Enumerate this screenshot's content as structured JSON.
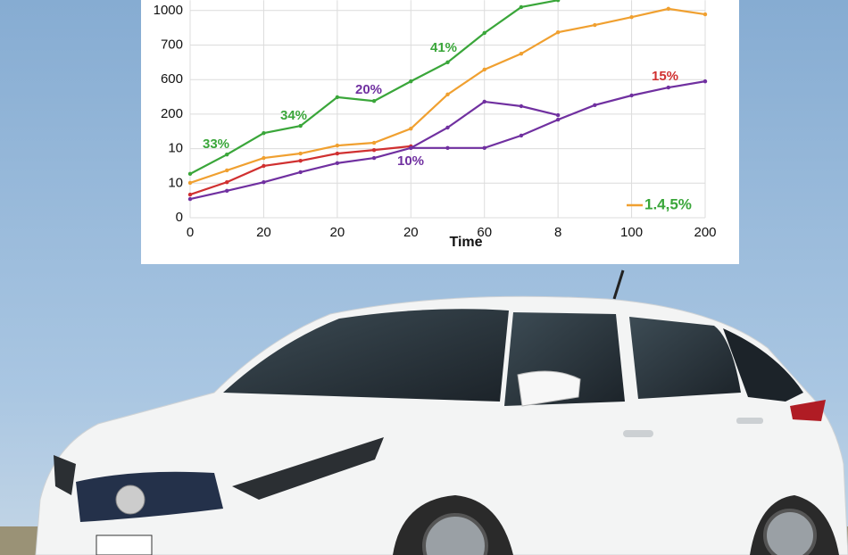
{
  "chart_data": {
    "type": "line",
    "xlabel": "Time",
    "xlim": [
      0,
      7
    ],
    "xticks": [
      {
        "value": 0,
        "label": "0"
      },
      {
        "value": 1,
        "label": "20"
      },
      {
        "value": 2,
        "label": "20"
      },
      {
        "value": 3,
        "label": "20"
      },
      {
        "value": 4,
        "label": "60"
      },
      {
        "value": 5,
        "label": "8"
      },
      {
        "value": 6,
        "label": "100"
      },
      {
        "value": 7,
        "label": "200"
      }
    ],
    "ylim": [
      0,
      6.3
    ],
    "yticks": [
      {
        "value": 0,
        "label": "0"
      },
      {
        "value": 1,
        "label": "10"
      },
      {
        "value": 2,
        "label": "10"
      },
      {
        "value": 3,
        "label": "200"
      },
      {
        "value": 4,
        "label": "600"
      },
      {
        "value": 5,
        "label": "700"
      },
      {
        "value": 6,
        "label": "1000"
      }
    ],
    "grid": true,
    "x": [
      0,
      0.5,
      1,
      1.5,
      2,
      2.5,
      3,
      3.5,
      4,
      4.5,
      5,
      5.5,
      6,
      6.5,
      7
    ],
    "series": [
      {
        "color": "#3aa63a",
        "values": [
          1.27,
          1.83,
          2.45,
          2.66,
          3.49,
          3.38,
          3.95,
          4.5,
          5.35,
          6.1,
          6.3,
          null,
          null,
          null,
          null
        ]
      },
      {
        "color": "#f0a030",
        "values": [
          1.01,
          1.37,
          1.73,
          1.86,
          2.09,
          2.17,
          2.58,
          3.57,
          4.29,
          4.75,
          5.37,
          5.58,
          5.81,
          6.05,
          5.89
        ]
      },
      {
        "color": "#d03030",
        "values": [
          0.67,
          1.03,
          1.5,
          1.65,
          1.86,
          1.96,
          2.07,
          null,
          null,
          null,
          null,
          null,
          null,
          null,
          null
        ]
      },
      {
        "color": "#7030a0",
        "values": [
          0.54,
          0.78,
          1.03,
          1.32,
          1.58,
          1.73,
          2.02,
          2.02,
          2.02,
          2.38,
          2.84,
          3.26,
          3.54,
          3.77,
          3.95
        ]
      },
      {
        "color": "#7030a0",
        "values": [
          null,
          null,
          null,
          null,
          null,
          null,
          2.02,
          2.61,
          3.36,
          3.23,
          2.97,
          null,
          null,
          null,
          null
        ]
      }
    ],
    "annotations": [
      {
        "text": "33%",
        "color": "#3aa63a"
      },
      {
        "text": "34%",
        "color": "#3aa63a"
      },
      {
        "text": "20%",
        "color": "#7030a0"
      },
      {
        "text": "41%",
        "color": "#3aa63a"
      },
      {
        "text": "10%",
        "color": "#7030a0"
      },
      {
        "text": "15%",
        "color": "#d03030"
      }
    ],
    "legend_text": "1.4,5%",
    "legend_text_color": "#3aa63a",
    "legend_line_color": "#f0a030"
  }
}
